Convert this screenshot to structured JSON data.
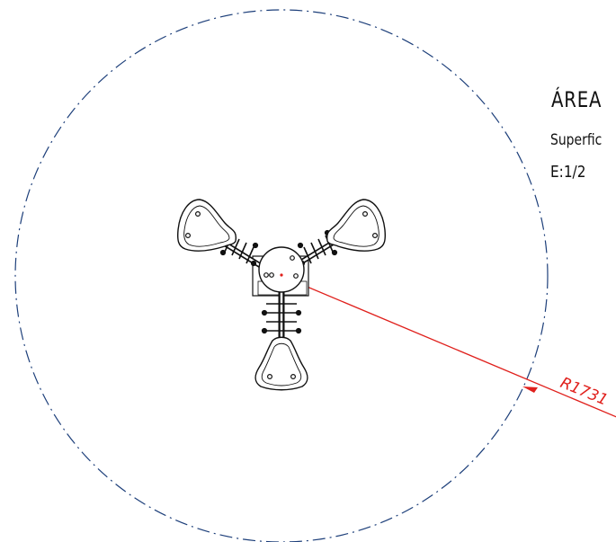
{
  "header": {
    "area_title": "ÁREA",
    "surface_label": "Superfic",
    "scale_label": "E:1/2"
  },
  "dimension": {
    "radius_label": "R1731",
    "color": "#e0201c"
  },
  "colors": {
    "boundary_circle": "#1d3f7a",
    "linework": "#111111"
  },
  "drawing": {
    "seat_count": 3,
    "boundary_line_style": "dash-dot"
  }
}
